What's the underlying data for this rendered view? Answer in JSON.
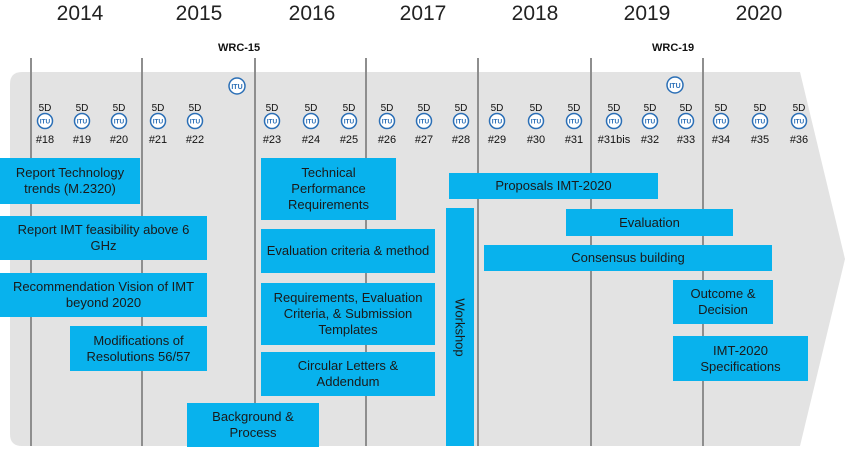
{
  "years": [
    "2014",
    "2015",
    "2016",
    "2017",
    "2018",
    "2019",
    "2020"
  ],
  "wrc": [
    {
      "label": "WRC-15"
    },
    {
      "label": "WRC-19"
    }
  ],
  "meeting_prefix": "5D",
  "meetings": [
    "#18",
    "#19",
    "#20",
    "#21",
    "#22",
    "#23",
    "#24",
    "#25",
    "#26",
    "#27",
    "#28",
    "#29",
    "#30",
    "#31",
    "#31bis",
    "#32",
    "#33",
    "#34",
    "#35",
    "#36"
  ],
  "activities": {
    "report_tech_trends": "Report Technology trends (M.2320)",
    "report_feasibility": "Report  IMT feasibility  above 6 GHz",
    "recommendation_vision": "Recommendation Vision of IMT beyond 2020",
    "modifications_resolutions": "Modifications of Resolutions 56/57",
    "background_process": "Background & Process",
    "technical_performance": "Technical Performance Requirements",
    "evaluation_criteria": "Evaluation criteria & method",
    "requirements_templates": "Requirements, Evaluation Criteria, & Submission Templates",
    "circular_letters": "Circular Letters & Addendum",
    "workshop": "Workshop",
    "proposals": "Proposals IMT-2020",
    "evaluation": "Evaluation",
    "consensus": "Consensus building",
    "outcome": "Outcome & Decision",
    "specifications": "IMT-2020 Specifications"
  },
  "colors": {
    "box": "#08b2ed",
    "band": "#e3e3e3",
    "gridline": "#8e8e8e",
    "itu_icon": "#2b6fb6"
  }
}
